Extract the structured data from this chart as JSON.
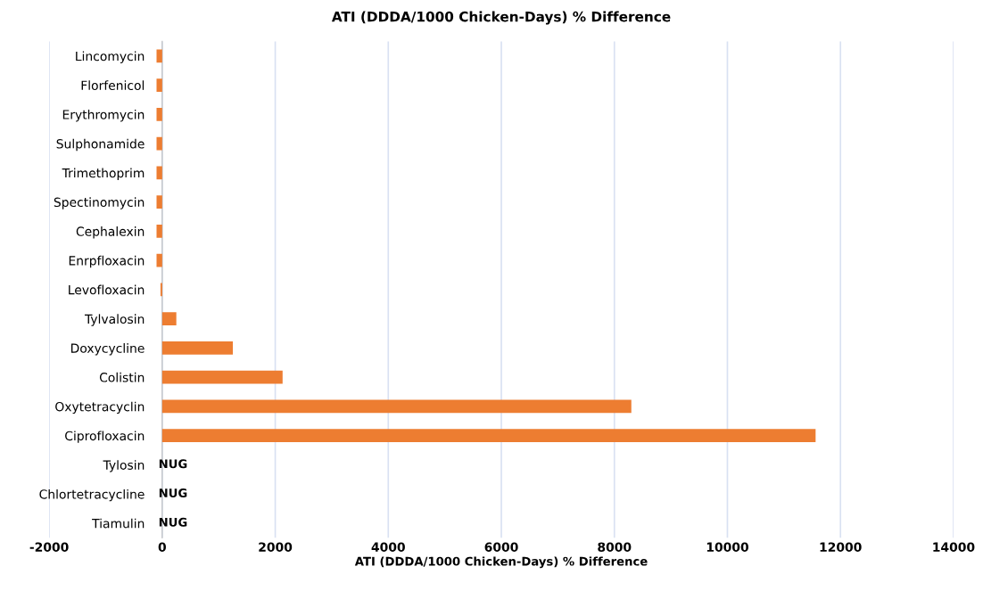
{
  "chart_data": {
    "type": "bar",
    "orientation": "horizontal",
    "title": "ATI (DDDA/1000 Chicken-Days) % Difference",
    "xlabel": "ATI (DDDA/1000 Chicken-Days) % Difference",
    "categories": [
      "Lincomycin",
      "Florfenicol",
      "Erythromycin",
      "Sulphonamide",
      "Trimethoprim",
      "Spectinomycin",
      "Cephalexin",
      "Enrpfloxacin",
      "Levofloxacin",
      "Tylvalosin",
      "Doxycycline",
      "Colistin",
      "Oxytetracyclin",
      "Ciprofloxacin",
      "Tylosin",
      "Chlortetracycline",
      "Tiamulin"
    ],
    "values": [
      -100,
      -100,
      -100,
      -100,
      -100,
      -100,
      -100,
      -100,
      -30,
      250,
      1250,
      2130,
      8300,
      11560,
      null,
      null,
      null
    ],
    "color": "#ed7d31",
    "value_labels": [
      null,
      null,
      null,
      null,
      null,
      null,
      null,
      null,
      null,
      null,
      null,
      null,
      null,
      null,
      "NUG",
      "NUG",
      "NUG"
    ],
    "xlim": [
      -2000,
      14000
    ],
    "xticks": [
      -2000,
      0,
      2000,
      4000,
      6000,
      8000,
      10000,
      12000,
      14000
    ],
    "grid": "x"
  }
}
